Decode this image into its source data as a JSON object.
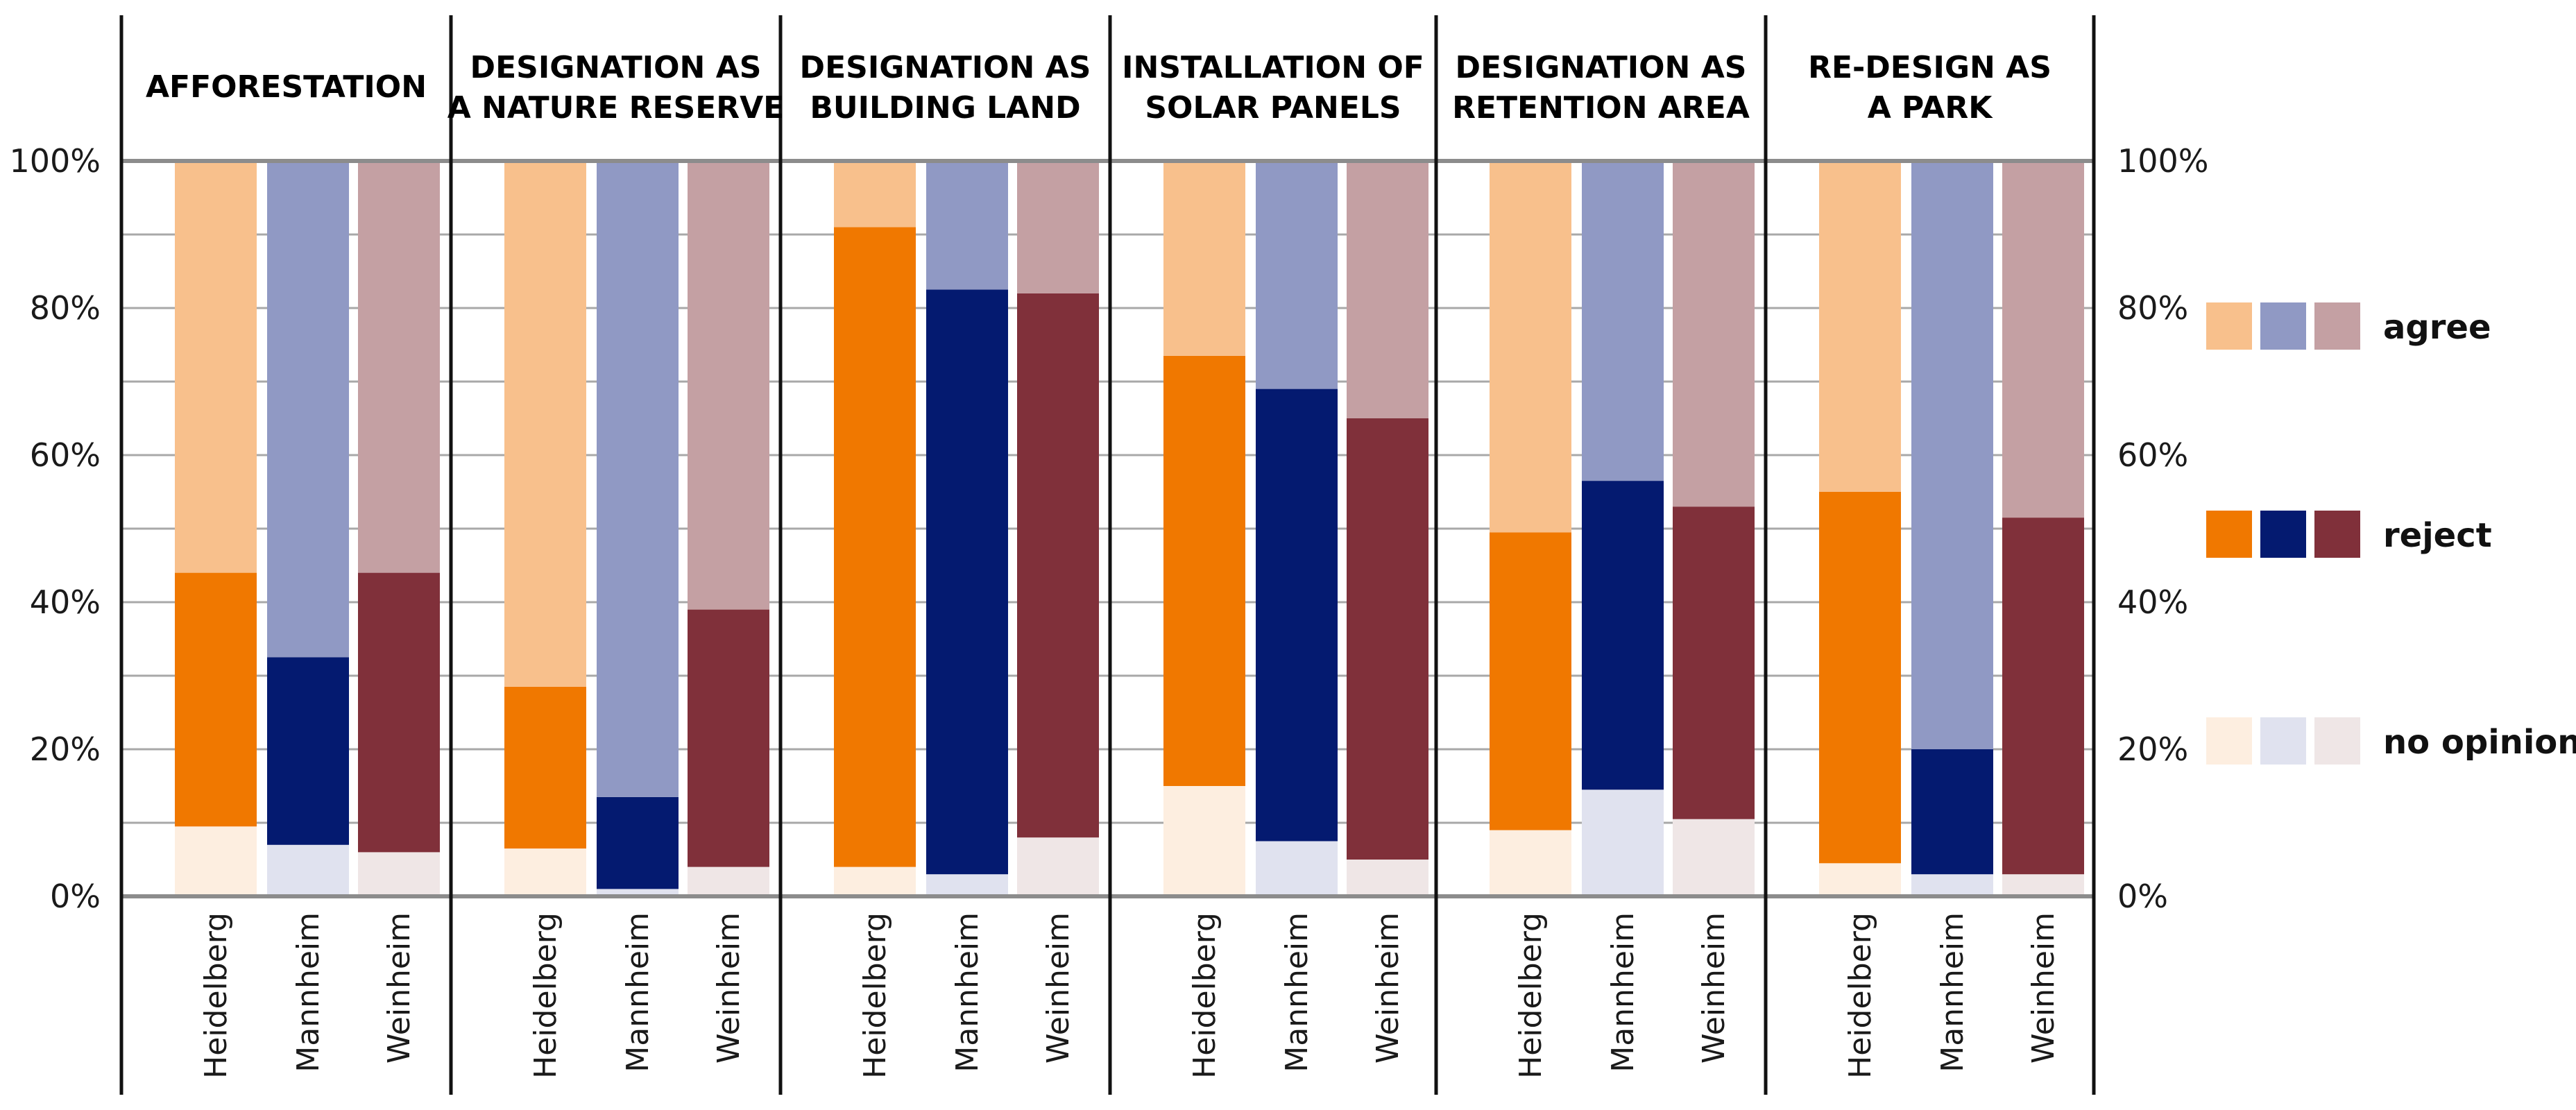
{
  "chart_data": {
    "type": "bar",
    "stacked": true,
    "ylim": [
      0,
      100
    ],
    "yticks": [
      "0%",
      "20%",
      "40%",
      "60%",
      "80%",
      "100%"
    ],
    "grid": true,
    "categories": [
      "Heidelberg",
      "Mannheim",
      "Weinheim"
    ],
    "series_names": [
      "no opinion",
      "reject",
      "agree"
    ],
    "panels": [
      {
        "title": [
          "AFFORESTATION"
        ],
        "no_opinion": [
          9.5,
          7,
          6
        ],
        "reject": [
          34.5,
          25.5,
          38
        ],
        "agree": [
          56,
          67.5,
          56
        ]
      },
      {
        "title": [
          "DESIGNATION AS",
          "A NATURE RESERVE"
        ],
        "no_opinion": [
          6.5,
          1,
          4
        ],
        "reject": [
          22,
          12.5,
          35
        ],
        "agree": [
          71.5,
          86.5,
          61
        ]
      },
      {
        "title": [
          "DESIGNATION AS",
          "BUILDING LAND"
        ],
        "no_opinion": [
          4,
          3,
          8
        ],
        "reject": [
          87,
          79.5,
          74
        ],
        "agree": [
          9,
          17.5,
          18
        ]
      },
      {
        "title": [
          "INSTALLATION OF",
          "SOLAR PANELS"
        ],
        "no_opinion": [
          15,
          7.5,
          5
        ],
        "reject": [
          58.5,
          61.5,
          60
        ],
        "agree": [
          26.5,
          31,
          35
        ]
      },
      {
        "title": [
          "DESIGNATION AS",
          "RETENTION AREA"
        ],
        "no_opinion": [
          9,
          14.5,
          10.5
        ],
        "reject": [
          40.5,
          42,
          42.5
        ],
        "agree": [
          50.5,
          43.5,
          47
        ]
      },
      {
        "title": [
          "RE-DESIGN AS",
          "A PARK"
        ],
        "no_opinion": [
          4.5,
          3,
          3
        ],
        "reject": [
          50.5,
          17,
          48.5
        ],
        "agree": [
          45,
          80,
          48.5
        ]
      }
    ],
    "colors": {
      "agree": [
        "#f8c08c",
        "#9099c4",
        "#c4a0a3"
      ],
      "reject": [
        "#f07800",
        "#041a70",
        "#80303a"
      ],
      "no_opinion": [
        "#fdeee0",
        "#e0e2ef",
        "#efe6e6"
      ]
    },
    "legend": {
      "position": "right",
      "entries": [
        "agree",
        "reject",
        "no opinion"
      ]
    }
  }
}
